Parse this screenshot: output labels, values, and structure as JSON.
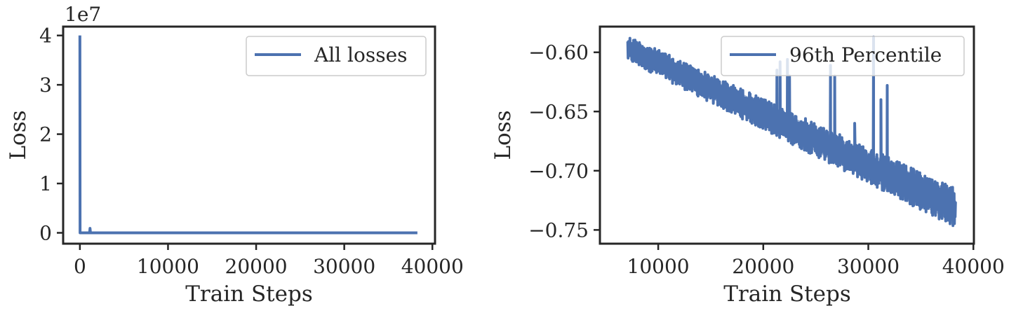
{
  "colors": {
    "series": "#4c72b0",
    "axes": "#262626",
    "background": "#ffffff",
    "legend_border": "#cccccc"
  },
  "chart_data": [
    {
      "type": "line",
      "xlabel": "Train Steps",
      "ylabel": "Loss",
      "offset_label": "1e7",
      "xlim": [
        -1900,
        40300
      ],
      "ylim": [
        -2200000,
        41800000
      ],
      "xticks": [
        0,
        10000,
        20000,
        30000,
        40000
      ],
      "xtick_labels": [
        "0",
        "10000",
        "20000",
        "30000",
        "40000"
      ],
      "yticks": [
        0,
        10000000,
        20000000,
        30000000,
        40000000
      ],
      "ytick_labels": [
        "0",
        "1",
        "2",
        "3",
        "4"
      ],
      "grid": false,
      "legend_position": "top-right",
      "series": [
        {
          "name": "All losses",
          "x": [
            0,
            20,
            40,
            60,
            80,
            100,
            1000,
            1100,
            1150,
            1200,
            1300,
            5000,
            10000,
            20000,
            30000,
            38300
          ],
          "y": [
            40000000,
            0,
            0,
            0,
            0,
            0,
            0,
            0,
            900000,
            0,
            0,
            0,
            0,
            0,
            0,
            0
          ]
        }
      ]
    },
    {
      "type": "line",
      "xlabel": "Train Steps",
      "ylabel": "Loss",
      "xlim": [
        4450,
        40050
      ],
      "ylim": [
        -0.7616,
        -0.5783
      ],
      "xticks": [
        10000,
        20000,
        30000,
        40000
      ],
      "xtick_labels": [
        "10000",
        "20000",
        "30000",
        "40000"
      ],
      "yticks": [
        -0.75,
        -0.7,
        -0.65,
        -0.6
      ],
      "ytick_labels": [
        "−0.75",
        "−0.70",
        "−0.65",
        "−0.60"
      ],
      "grid": false,
      "legend_position": "top-right",
      "series": [
        {
          "name": "96th Percentile",
          "x": [
            7100,
            38300
          ],
          "y_low_start": -0.607,
          "y_low_end": -0.748,
          "y_high_start": -0.586,
          "y_high_end": -0.715,
          "spikes": [
            {
              "x": 21300,
              "y": -0.615
            },
            {
              "x": 21600,
              "y": -0.608
            },
            {
              "x": 22300,
              "y": -0.606
            },
            {
              "x": 22500,
              "y": -0.62
            },
            {
              "x": 26400,
              "y": -0.611
            },
            {
              "x": 26800,
              "y": -0.62
            },
            {
              "x": 30500,
              "y": -0.587
            },
            {
              "x": 31200,
              "y": -0.64
            },
            {
              "x": 31800,
              "y": -0.628
            },
            {
              "x": 28700,
              "y": -0.66
            }
          ]
        }
      ]
    }
  ]
}
